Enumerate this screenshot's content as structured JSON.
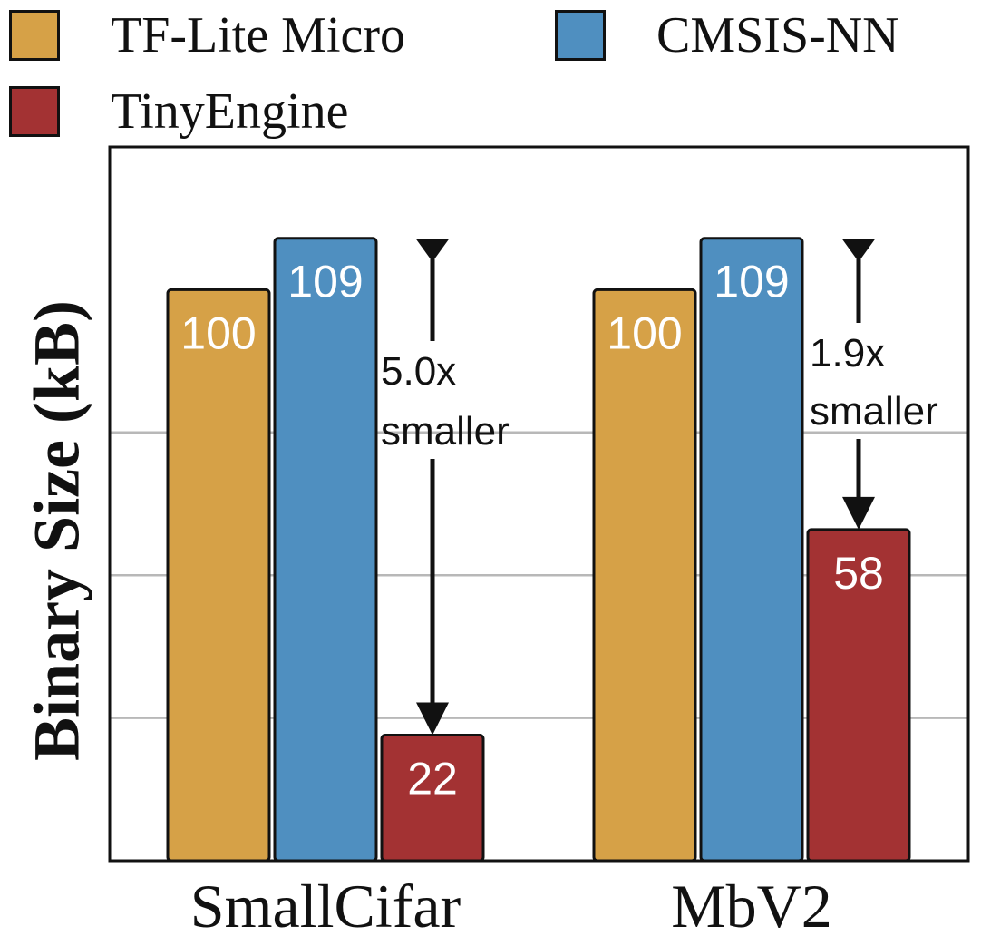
{
  "chart_data": {
    "type": "bar",
    "title": "",
    "xlabel": "",
    "ylabel": "Binary Size (kB)",
    "ylim": [
      0,
      125
    ],
    "grid": true,
    "legend_position": "top",
    "categories": [
      "SmallCifar",
      "MbV2"
    ],
    "series": [
      {
        "name": "TF-Lite Micro",
        "color": "#d6a147",
        "values": [
          100,
          100
        ]
      },
      {
        "name": "CMSIS-NN",
        "color": "#4f8fc0",
        "values": [
          109,
          109
        ]
      },
      {
        "name": "TinyEngine",
        "color": "#a33233",
        "values": [
          22,
          58
        ]
      }
    ],
    "annotations": [
      {
        "category": "SmallCifar",
        "line1": "5.0x",
        "line2": "smaller"
      },
      {
        "category": "MbV2",
        "line1": "1.9x",
        "line2": "smaller"
      }
    ]
  }
}
